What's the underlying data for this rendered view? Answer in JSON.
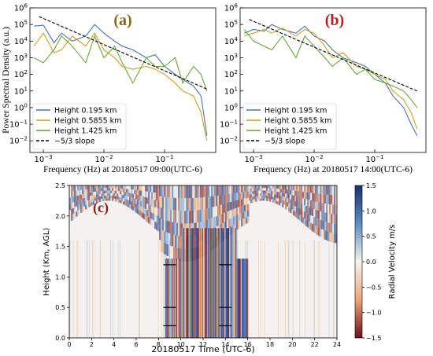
{
  "colors": {
    "series": [
      "#4c72b0",
      "#c9a227",
      "#6aa63a"
    ],
    "slope": "#000000",
    "panel_a_label": "#8b6914",
    "panel_b_label": "#b22222"
  },
  "chart_data": [
    {
      "type": "line",
      "panel_label": "(a)",
      "xscale": "log",
      "yscale": "log",
      "xlim": [
        0.0006,
        0.7
      ],
      "ylim": [
        0.002,
        1000000
      ],
      "xlabel": "Frequency (Hz) at 20180517 09:00(UTC-6)",
      "ylabel": "Power Spectral Density (a.u.)",
      "x_ticks": [
        {
          "value": 0.001,
          "base": "10",
          "exp": "−3"
        },
        {
          "value": 0.01,
          "base": "10",
          "exp": "−2"
        },
        {
          "value": 0.1,
          "base": "10",
          "exp": "−1"
        }
      ],
      "y_ticks": [
        {
          "value": 0.01,
          "base": "10",
          "exp": "−2"
        },
        {
          "value": 0.1,
          "base": "10",
          "exp": "−1"
        },
        {
          "value": 1,
          "base": "10",
          "exp": "0"
        },
        {
          "value": 10,
          "base": "10",
          "exp": "1"
        },
        {
          "value": 100,
          "base": "10",
          "exp": "2"
        },
        {
          "value": 1000,
          "base": "10",
          "exp": "3"
        },
        {
          "value": 10000,
          "base": "10",
          "exp": "4"
        },
        {
          "value": 100000,
          "base": "10",
          "exp": "5"
        },
        {
          "value": 1000000,
          "base": "10",
          "exp": "6"
        }
      ],
      "legend_position": "lower-left",
      "series": [
        {
          "name": "Height 0.195 km",
          "x": [
            0.0007,
            0.001,
            0.0015,
            0.002,
            0.003,
            0.005,
            0.007,
            0.01,
            0.015,
            0.02,
            0.03,
            0.05,
            0.07,
            0.1,
            0.15,
            0.2,
            0.3,
            0.4,
            0.5
          ],
          "y": [
            80000,
            90000,
            8000,
            30000,
            10000,
            20000,
            100000,
            30000,
            10000,
            5000,
            3000,
            1000,
            1500,
            300,
            100,
            50,
            20,
            5,
            0.02
          ]
        },
        {
          "name": "Height 0.5855 km",
          "x": [
            0.0007,
            0.001,
            0.0015,
            0.002,
            0.003,
            0.005,
            0.007,
            0.01,
            0.015,
            0.02,
            0.03,
            0.05,
            0.07,
            0.1,
            0.15,
            0.2,
            0.3,
            0.4,
            0.5
          ],
          "y": [
            5000,
            30000,
            2000,
            3000,
            20000,
            5000,
            30000,
            3000,
            1000,
            300,
            200,
            300,
            200,
            100,
            30,
            10,
            5,
            0.5,
            0.01
          ]
        },
        {
          "name": "Height 1.425 km",
          "x": [
            0.0007,
            0.001,
            0.0015,
            0.002,
            0.003,
            0.005,
            0.007,
            0.01,
            0.015,
            0.02,
            0.03,
            0.05,
            0.07,
            0.1,
            0.15,
            0.2,
            0.3,
            0.4,
            0.5
          ],
          "y": [
            1000,
            500,
            3000,
            20000,
            5000,
            500,
            20000,
            1000,
            5000,
            500,
            30,
            1000,
            300,
            300,
            1000,
            30,
            300,
            100,
            10
          ]
        },
        {
          "name": "−5/3 slope",
          "x": [
            0.00085,
            0.5
          ],
          "y": [
            300000,
            13
          ]
        }
      ]
    },
    {
      "type": "line",
      "panel_label": "(b)",
      "xscale": "log",
      "yscale": "log",
      "xlim": [
        0.0006,
        0.7
      ],
      "ylim": [
        0.002,
        1000000
      ],
      "xlabel": "Frequency (Hz) at 20180517 14:00(UTC-6)",
      "ylabel": "",
      "x_ticks": [
        {
          "value": 0.001,
          "base": "10",
          "exp": "−3"
        },
        {
          "value": 0.01,
          "base": "10",
          "exp": "−2"
        },
        {
          "value": 0.1,
          "base": "10",
          "exp": "−1"
        }
      ],
      "y_ticks": [
        {
          "value": 0.01,
          "base": "10",
          "exp": "−2"
        },
        {
          "value": 0.1,
          "base": "10",
          "exp": "−1"
        },
        {
          "value": 1,
          "base": "10",
          "exp": "0"
        },
        {
          "value": 10,
          "base": "10",
          "exp": "1"
        },
        {
          "value": 100,
          "base": "10",
          "exp": "2"
        },
        {
          "value": 1000,
          "base": "10",
          "exp": "3"
        },
        {
          "value": 10000,
          "base": "10",
          "exp": "4"
        },
        {
          "value": 100000,
          "base": "10",
          "exp": "5"
        },
        {
          "value": 1000000,
          "base": "10",
          "exp": "6"
        }
      ],
      "legend_position": "lower-left",
      "series": [
        {
          "name": "Height 0.195 km",
          "x": [
            0.0007,
            0.001,
            0.0015,
            0.002,
            0.003,
            0.005,
            0.007,
            0.01,
            0.015,
            0.02,
            0.03,
            0.05,
            0.07,
            0.1,
            0.15,
            0.2,
            0.3,
            0.4,
            0.5
          ],
          "y": [
            30000,
            50000,
            40000,
            100000,
            50000,
            30000,
            80000,
            20000,
            10000,
            3000,
            1000,
            500,
            300,
            100,
            30,
            5,
            1,
            0.1,
            0.02
          ]
        },
        {
          "name": "Height 0.5855 km",
          "x": [
            0.0007,
            0.001,
            0.0015,
            0.002,
            0.003,
            0.005,
            0.007,
            0.01,
            0.015,
            0.02,
            0.03,
            0.05,
            0.07,
            0.1,
            0.15,
            0.2,
            0.3,
            0.4,
            0.5
          ],
          "y": [
            20000,
            30000,
            50000,
            30000,
            60000,
            20000,
            50000,
            30000,
            5000,
            1000,
            2000,
            300,
            200,
            100,
            50,
            10,
            3,
            0.5,
            0.05
          ]
        },
        {
          "name": "Height 1.425 km",
          "x": [
            0.0007,
            0.001,
            0.0015,
            0.002,
            0.003,
            0.005,
            0.007,
            0.01,
            0.015,
            0.02,
            0.03,
            0.05,
            0.07,
            0.1,
            0.15,
            0.2,
            0.3,
            0.4,
            0.5
          ],
          "y": [
            50000,
            10000,
            5000,
            3000,
            20000,
            1000,
            20000,
            5000,
            1000,
            300,
            1000,
            100,
            200,
            50,
            30,
            20,
            10,
            3,
            1
          ]
        },
        {
          "name": "−5/3 slope",
          "x": [
            0.00085,
            0.5
          ],
          "y": [
            200000,
            10
          ]
        }
      ]
    },
    {
      "type": "heatmap",
      "panel_label": "(c)",
      "xlabel": "20180517 Time (UTC-6)",
      "ylabel": "Height (Km, AGL)",
      "xlim": [
        0,
        24
      ],
      "ylim": [
        0,
        2.5
      ],
      "x_ticks": [
        0,
        2,
        4,
        6,
        8,
        10,
        12,
        14,
        16,
        18,
        20,
        22,
        24
      ],
      "y_ticks": [
        0.0,
        0.5,
        1.0,
        1.5,
        2.0,
        2.5
      ],
      "x_tick_labels": [
        "0",
        "2",
        "4",
        "6",
        "8",
        "10",
        "12",
        "14",
        "16",
        "18",
        "20",
        "22",
        "24"
      ],
      "y_tick_labels": [
        "0.0",
        "0.5",
        "1.0",
        "1.5",
        "2.0",
        "2.5"
      ],
      "colorbar": {
        "label": "Radial Velocity m/s",
        "range": [
          -1.5,
          1.5
        ],
        "ticks": [
          1.5,
          1.0,
          0.5,
          0.0,
          -0.5,
          -1.0,
          -1.5
        ],
        "tick_labels": [
          "1.5",
          "1.0",
          "0.5",
          "0.0",
          "−0.5",
          "−1.0",
          "−1.5"
        ],
        "colors": [
          "#1a2f6e",
          "#5b8ec4",
          "#f7f3ee",
          "#e8a877",
          "#6b0f1a"
        ]
      },
      "markers": [
        {
          "time": 9,
          "height": 1.2
        },
        {
          "time": 9,
          "height": 0.5
        },
        {
          "time": 9,
          "height": 0.2
        },
        {
          "time": 14,
          "height": 1.2
        },
        {
          "time": 14,
          "height": 0.5
        },
        {
          "time": 14,
          "height": 0.2
        }
      ]
    }
  ]
}
